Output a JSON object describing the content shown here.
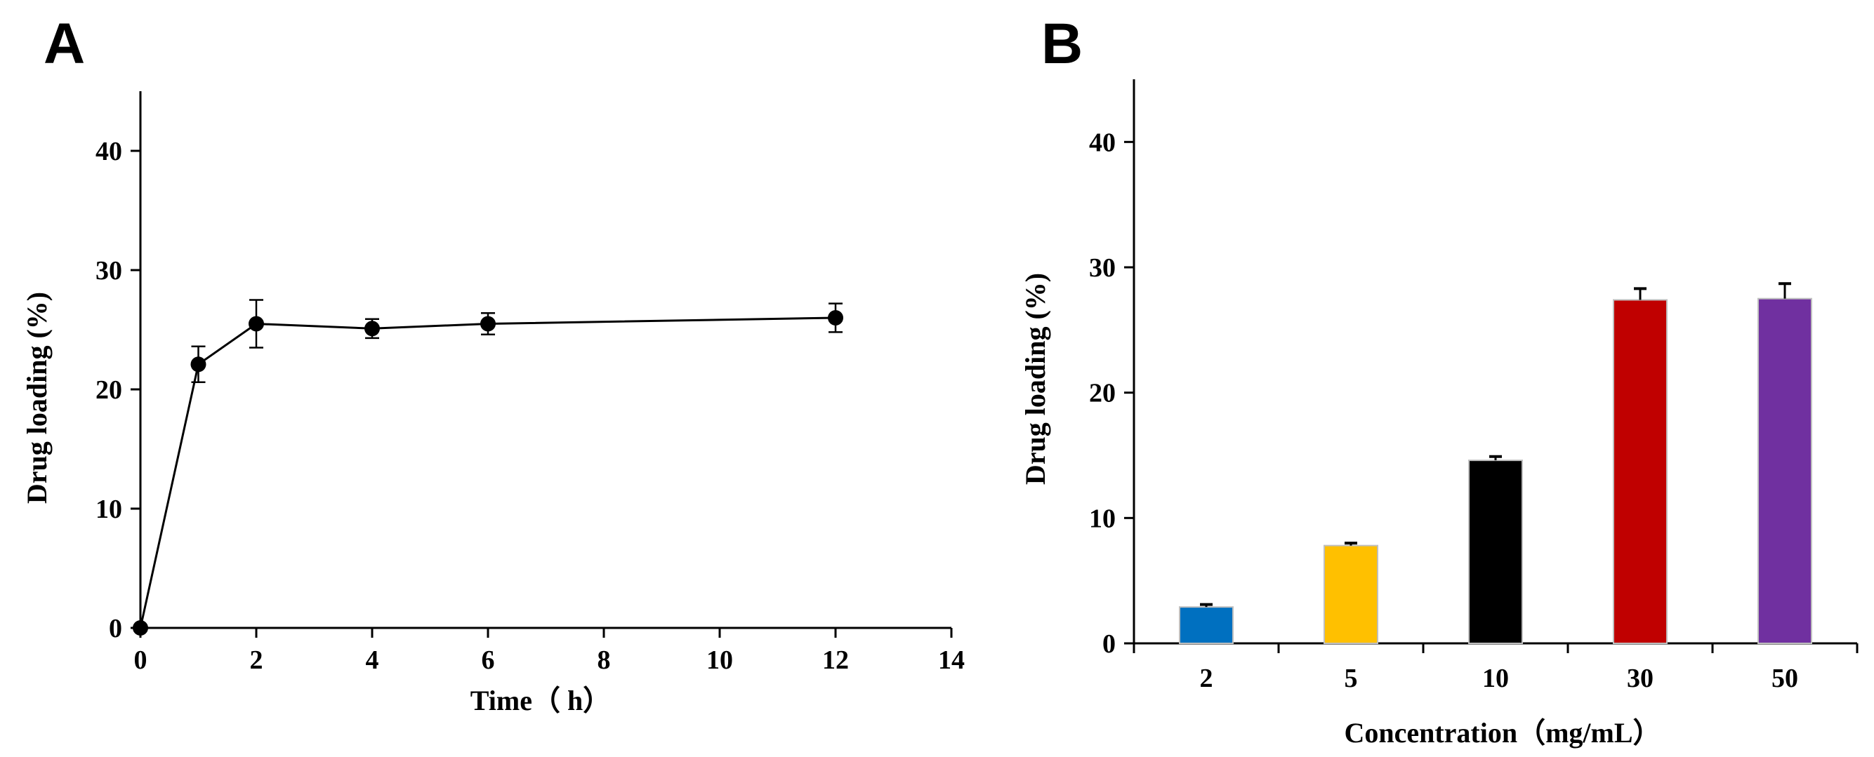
{
  "chart_data": [
    {
      "panel": "A",
      "type": "line",
      "xlabel": "Time（ h）",
      "ylabel": "Drug loading (%)",
      "xlim": [
        0,
        14
      ],
      "ylim": [
        0,
        45
      ],
      "xticks": [
        "0",
        "2",
        "4",
        "6",
        "8",
        "10",
        "12",
        "14"
      ],
      "yticks": [
        "0",
        "10",
        "20",
        "30",
        "40"
      ],
      "series": [
        {
          "x": [
            0,
            1,
            2,
            4,
            6,
            12
          ],
          "values": [
            0,
            22.1,
            25.5,
            25.1,
            25.5,
            26.0
          ],
          "error": [
            0,
            1.5,
            2.0,
            0.8,
            0.9,
            1.2
          ],
          "color": "#000000",
          "marker": "circle"
        }
      ],
      "grid": false
    },
    {
      "panel": "B",
      "type": "bar",
      "xlabel": "Concentration（mg/mL）",
      "ylabel": "Drug loading (%)",
      "ylim": [
        0,
        45
      ],
      "yticks": [
        "0",
        "10",
        "20",
        "30",
        "40"
      ],
      "categories": [
        "2",
        "5",
        "10",
        "30",
        "50"
      ],
      "values": [
        2.9,
        7.8,
        14.6,
        27.4,
        27.5
      ],
      "error": [
        0.2,
        0.2,
        0.3,
        0.9,
        1.2
      ],
      "colors": [
        "#0070c0",
        "#ffc000",
        "#000000",
        "#c00000",
        "#7030a0"
      ],
      "grid": false
    }
  ]
}
